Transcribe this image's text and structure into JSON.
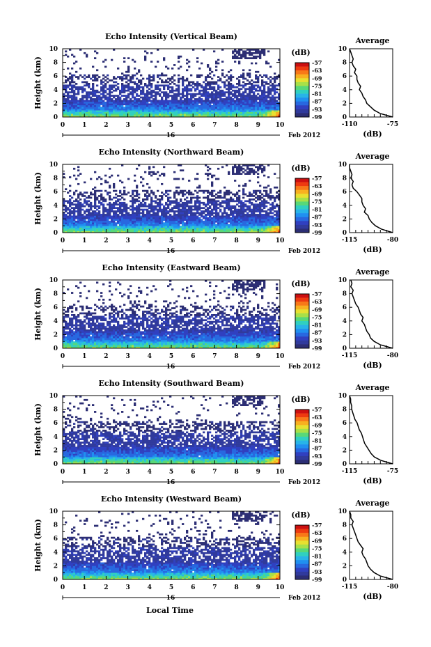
{
  "figure": {
    "date_label": "Feb 2012",
    "day_label": "16",
    "xlabel": "Local Time"
  },
  "colorbar": {
    "label": "(dB)",
    "ticks": [
      "-57",
      "-63",
      "-69",
      "-75",
      "-81",
      "-87",
      "-93",
      "-99"
    ],
    "colors": [
      "#cc1010",
      "#ee3a10",
      "#f87818",
      "#f8b020",
      "#e8e030",
      "#a8e048",
      "#58d878",
      "#30d0c0",
      "#28b4e8",
      "#2090f0",
      "#2868e0",
      "#3040c0",
      "#303a9c",
      "#2c2e74"
    ]
  },
  "panels": [
    {
      "title": "Echo Intensity (Vertical Beam)",
      "avg_xticks": [
        "-110",
        "-75"
      ]
    },
    {
      "title": "Echo Intensity (Northward Beam)",
      "avg_xticks": [
        "-115",
        "-80"
      ]
    },
    {
      "title": "Echo Intensity (Eastward Beam)",
      "avg_xticks": [
        "-115",
        "-80"
      ]
    },
    {
      "title": "Echo Intensity (Southward Beam)",
      "avg_xticks": [
        "-115",
        "-75"
      ]
    },
    {
      "title": "Echo Intensity (Westward Beam)",
      "avg_xticks": [
        "-115",
        "-80"
      ]
    }
  ],
  "chart_data": {
    "type": "heatmap",
    "ylabel": "Height (km)",
    "xlabel": "Local Time",
    "xlim": [
      0,
      10
    ],
    "ylim": [
      0,
      10
    ],
    "xticks": [
      "0",
      "1",
      "2",
      "3",
      "4",
      "5",
      "6",
      "7",
      "8",
      "9",
      "10"
    ],
    "yticks": [
      "0",
      "2",
      "4",
      "6",
      "8",
      "10"
    ],
    "avg_panel": {
      "title": "Average",
      "xlabel": "(dB)",
      "yticks": [
        "0",
        "2",
        "4",
        "6",
        "8",
        "10"
      ],
      "profile_vertical": [
        [
          -75,
          0
        ],
        [
          -85,
          0.5
        ],
        [
          -90,
          1
        ],
        [
          -93,
          1.5
        ],
        [
          -96,
          2
        ],
        [
          -97,
          2.5
        ],
        [
          -99,
          3
        ],
        [
          -100,
          3.5
        ],
        [
          -102,
          4
        ],
        [
          -101,
          4.5
        ],
        [
          -103,
          5
        ],
        [
          -104,
          5.5
        ],
        [
          -104,
          6
        ],
        [
          -106,
          6.5
        ],
        [
          -105,
          7
        ],
        [
          -107,
          7.5
        ],
        [
          -108,
          8
        ],
        [
          -107,
          8.5
        ],
        [
          -108,
          9
        ],
        [
          -109,
          9.5
        ],
        [
          -110,
          10
        ]
      ],
      "profile_north": [
        [
          -80,
          0
        ],
        [
          -89,
          0.5
        ],
        [
          -94,
          1
        ],
        [
          -97,
          1.5
        ],
        [
          -99,
          2
        ],
        [
          -100,
          2.5
        ],
        [
          -103,
          3
        ],
        [
          -102,
          3.5
        ],
        [
          -104,
          4
        ],
        [
          -105,
          4.5
        ],
        [
          -105,
          5
        ],
        [
          -107,
          5.5
        ],
        [
          -109,
          6
        ],
        [
          -112,
          6.5
        ],
        [
          -113,
          7
        ],
        [
          -112,
          7.5
        ],
        [
          -114,
          8
        ],
        [
          -113,
          8.5
        ],
        [
          -114,
          9
        ],
        [
          -115,
          9.5
        ],
        [
          -115,
          10
        ]
      ],
      "profile_east": [
        [
          -80,
          0
        ],
        [
          -90,
          0.5
        ],
        [
          -95,
          1
        ],
        [
          -98,
          1.5
        ],
        [
          -99,
          2
        ],
        [
          -101,
          2.5
        ],
        [
          -102,
          3
        ],
        [
          -103,
          3.5
        ],
        [
          -105,
          4
        ],
        [
          -104,
          4.5
        ],
        [
          -106,
          5
        ],
        [
          -107,
          5.5
        ],
        [
          -108,
          6
        ],
        [
          -110,
          6.5
        ],
        [
          -111,
          7
        ],
        [
          -112,
          7.5
        ],
        [
          -113,
          8
        ],
        [
          -112,
          8.5
        ],
        [
          -114,
          9
        ],
        [
          -113,
          9.5
        ],
        [
          -114,
          10
        ]
      ],
      "profile_south": [
        [
          -75,
          0
        ],
        [
          -86,
          0.5
        ],
        [
          -92,
          1
        ],
        [
          -95,
          1.5
        ],
        [
          -97,
          2
        ],
        [
          -99,
          2.5
        ],
        [
          -101,
          3
        ],
        [
          -102,
          3.5
        ],
        [
          -103,
          4
        ],
        [
          -104,
          4.5
        ],
        [
          -106,
          5
        ],
        [
          -107,
          5.5
        ],
        [
          -108,
          6
        ],
        [
          -110,
          6.5
        ],
        [
          -111,
          7
        ],
        [
          -112,
          7.5
        ],
        [
          -113,
          8
        ],
        [
          -113,
          8.5
        ],
        [
          -114,
          9
        ],
        [
          -114,
          9.5
        ],
        [
          -115,
          10
        ]
      ],
      "profile_west": [
        [
          -80,
          0
        ],
        [
          -90,
          0.5
        ],
        [
          -95,
          1
        ],
        [
          -98,
          1.5
        ],
        [
          -100,
          2
        ],
        [
          -101,
          2.5
        ],
        [
          -102,
          3
        ],
        [
          -104,
          3.5
        ],
        [
          -105,
          4
        ],
        [
          -104,
          4.5
        ],
        [
          -106,
          5
        ],
        [
          -108,
          5.5
        ],
        [
          -109,
          6
        ],
        [
          -110,
          6.5
        ],
        [
          -111,
          7
        ],
        [
          -112,
          7.5
        ],
        [
          -113,
          8
        ],
        [
          -112,
          8.5
        ],
        [
          -114,
          9
        ],
        [
          -114,
          9.5
        ],
        [
          -115,
          10
        ]
      ]
    }
  }
}
